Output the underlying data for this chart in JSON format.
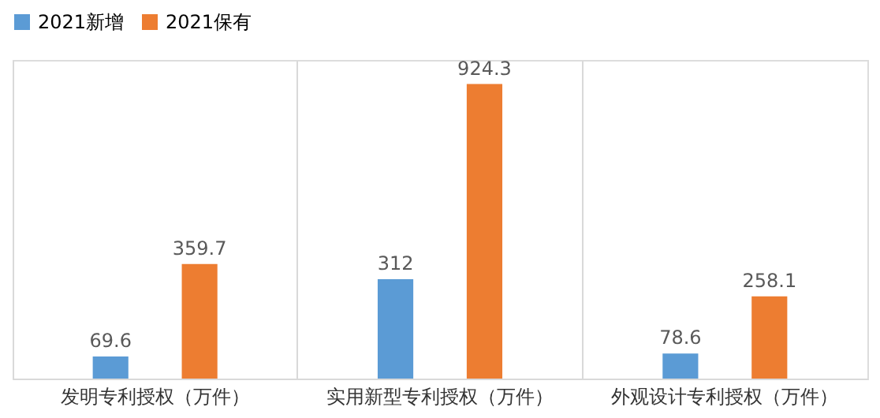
{
  "chart_data": {
    "type": "bar",
    "categories": [
      "发明专利授权（万件）",
      "实用新型专利授权（万件）",
      "外观设计专利授权（万件）"
    ],
    "series": [
      {
        "name": "2021新增",
        "color": "#5b9bd5",
        "values": [
          69.6,
          312,
          78.6
        ]
      },
      {
        "name": "2021保有",
        "color": "#ed7d31",
        "values": [
          359.7,
          924.3,
          258.1
        ]
      }
    ],
    "data_labels": true,
    "legend": "top",
    "grid": "x"
  }
}
